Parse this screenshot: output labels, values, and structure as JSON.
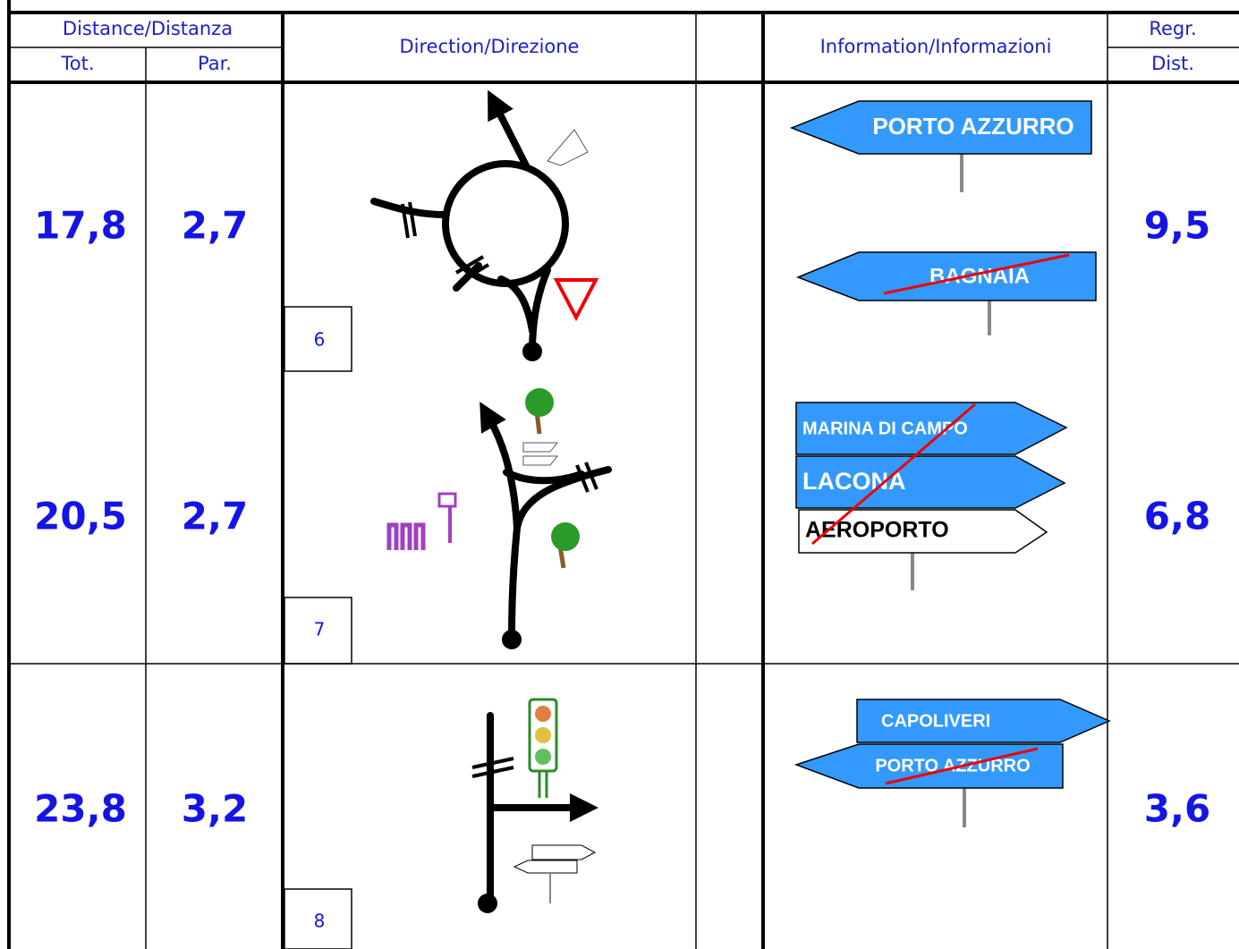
{
  "header": {
    "distance": "Distance/Distanza",
    "tot": "Tot.",
    "par": "Par.",
    "direction": "Direction/Direzione",
    "information": "Information/Informazioni",
    "regr": "Regr.",
    "dist": "Dist."
  },
  "rows": [
    {
      "tot": "17,8",
      "par": "2,7",
      "step": "6",
      "signs": [
        "PORTO AZZURRO",
        "BAGNAIA"
      ],
      "regr": "9,5"
    },
    {
      "tot": "20,5",
      "par": "2,7",
      "step": "7",
      "signs": [
        "MARINA DI CAMPO",
        "LACONA",
        "AEROPORTO"
      ],
      "regr": "6,8"
    },
    {
      "tot": "23,8",
      "par": "3,2",
      "step": "8",
      "signs": [
        "CAPOLIVERI",
        "PORTO AZZURRO"
      ],
      "regr": "3,6"
    }
  ]
}
